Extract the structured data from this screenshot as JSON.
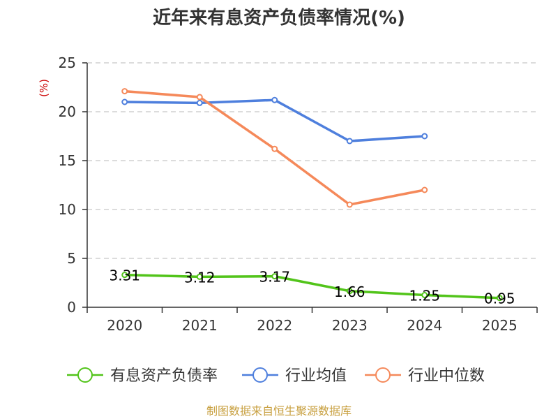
{
  "chart_data": {
    "type": "line",
    "title": "近年来有息资产负债率情况(%)",
    "ylabel": "(%)",
    "categories": [
      "2020",
      "2021",
      "2022",
      "2023",
      "2024",
      "2025"
    ],
    "ylim": [
      0,
      25
    ],
    "yticks": [
      0,
      5,
      10,
      15,
      20,
      25
    ],
    "grid": true,
    "legend_position": "bottom",
    "series": [
      {
        "name": "有息资产负债率",
        "color": "#52c41a",
        "values": [
          3.31,
          3.12,
          3.17,
          1.66,
          1.25,
          0.95
        ],
        "labels": [
          "3.31",
          "3.12",
          "3.17",
          "1.66",
          "1.25",
          "0.95"
        ]
      },
      {
        "name": "行业均值",
        "color": "#4e7fdd",
        "values": [
          21.0,
          20.9,
          21.2,
          17.0,
          17.5,
          null
        ]
      },
      {
        "name": "行业中位数",
        "color": "#f5895a",
        "values": [
          22.1,
          21.5,
          16.2,
          10.5,
          12.0,
          null
        ]
      }
    ]
  },
  "source": "制图数据来自恒生聚源数据库"
}
